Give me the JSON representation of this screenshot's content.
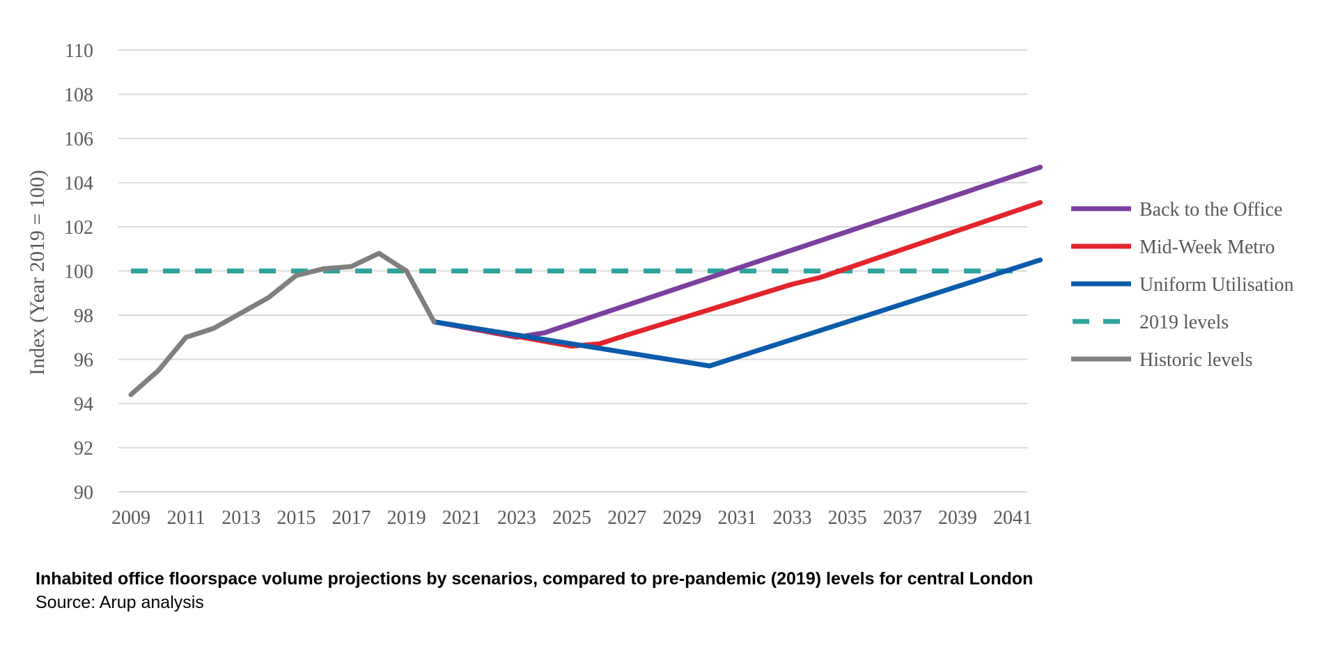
{
  "chart_data": {
    "type": "line",
    "ylabel": "Index (Year 2019 = 100)",
    "xlabel": "",
    "ylim": [
      90,
      110
    ],
    "yticks": [
      90,
      92,
      94,
      96,
      98,
      100,
      102,
      104,
      106,
      108,
      110
    ],
    "xlim": [
      2009,
      2042
    ],
    "xticks": [
      2009,
      2011,
      2013,
      2015,
      2017,
      2019,
      2021,
      2023,
      2025,
      2027,
      2029,
      2031,
      2033,
      2035,
      2037,
      2039,
      2041
    ],
    "grid": true,
    "legend_position": "right",
    "series": [
      {
        "name": "Back to the Office",
        "color": "#7B3F9E",
        "dashed": false,
        "x": [
          2020,
          2023,
          2024,
          2042
        ],
        "y": [
          97.7,
          97.0,
          97.2,
          104.7
        ]
      },
      {
        "name": "Mid-Week Metro",
        "color": "#E3242B",
        "dashed": false,
        "x": [
          2020,
          2025,
          2026,
          2027,
          2033,
          2034,
          2042
        ],
        "y": [
          97.7,
          96.6,
          96.7,
          97.1,
          99.4,
          99.7,
          103.1
        ]
      },
      {
        "name": "Uniform Utilisation",
        "color": "#0A5BAA",
        "dashed": false,
        "x": [
          2020,
          2030,
          2042
        ],
        "y": [
          97.7,
          95.7,
          100.5
        ]
      },
      {
        "name": "2019 levels",
        "color": "#2FA39E",
        "dashed": true,
        "x": [
          2009,
          2042
        ],
        "y": [
          100,
          100
        ]
      },
      {
        "name": "Historic levels",
        "color": "#7F7F7F",
        "dashed": false,
        "x": [
          2009,
          2010,
          2011,
          2012,
          2013,
          2014,
          2015,
          2016,
          2017,
          2018,
          2019,
          2020
        ],
        "y": [
          94.4,
          95.5,
          97.0,
          97.4,
          98.1,
          98.8,
          99.8,
          100.1,
          100.2,
          100.8,
          100.0,
          97.7
        ]
      }
    ],
    "legend_order": [
      "Back to the Office",
      "Mid-Week Metro",
      "Uniform Utilisation",
      "2019 levels",
      "Historic levels"
    ]
  },
  "caption": {
    "title": "Inhabited office floorspace volume projections by scenarios, compared to pre-pandemic (2019) levels for central London",
    "source": "Source: Arup analysis"
  }
}
